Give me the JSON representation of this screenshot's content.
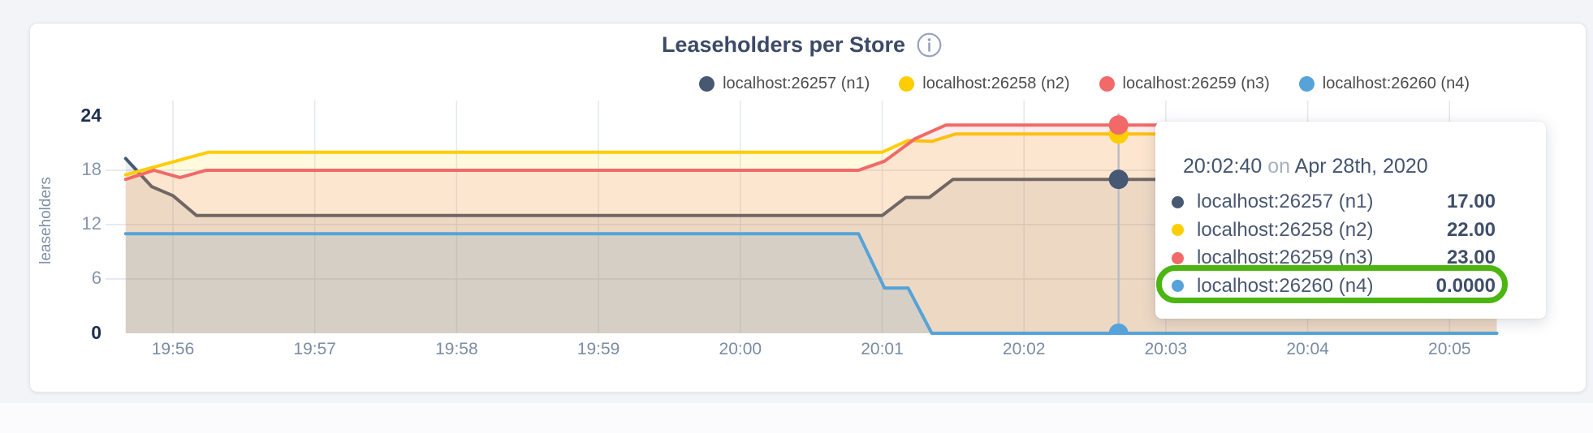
{
  "page": {
    "background_color": "#f2f4f8"
  },
  "chart": {
    "title": "Leaseholders per Store",
    "ylabel": "leaseholders",
    "legend": [
      {
        "label": "localhost:26257 (n1)",
        "color": "#475872"
      },
      {
        "label": "localhost:26258 (n2)",
        "color": "#ffcd02"
      },
      {
        "label": "localhost:26259 (n3)",
        "color": "#f16969"
      },
      {
        "label": "localhost:26260 (n4)",
        "color": "#55a3d8"
      }
    ]
  },
  "chart_data": {
    "type": "area",
    "title": "Leaseholders per Store",
    "xlabel": "",
    "ylabel": "leaseholders",
    "ylim": [
      0,
      24
    ],
    "y_ticks": [
      0,
      6,
      12,
      18,
      24
    ],
    "y_gridlines": [
      6,
      12,
      18
    ],
    "x_ticks": [
      "19:56",
      "19:57",
      "19:58",
      "19:59",
      "20:00",
      "20:01",
      "20:02",
      "20:03",
      "20:04",
      "20:05"
    ],
    "x_tick_seconds": [
      0,
      60,
      120,
      180,
      240,
      300,
      360,
      420,
      480,
      540
    ],
    "x_domain_seconds": [
      -20,
      560
    ],
    "x_unit": "seconds since 19:56:00",
    "grid": true,
    "legend_position": "top-right",
    "series": [
      {
        "name": "localhost:26257 (n1)",
        "color": "#475872",
        "points": [
          [
            -20,
            19.3
          ],
          [
            -9,
            16.2
          ],
          [
            0,
            15.2
          ],
          [
            10,
            13
          ],
          [
            300,
            13
          ],
          [
            310,
            15
          ],
          [
            320,
            15
          ],
          [
            330,
            17
          ],
          [
            560,
            17
          ]
        ]
      },
      {
        "name": "localhost:26258 (n2)",
        "color": "#ffcd02",
        "points": [
          [
            -20,
            17.5
          ],
          [
            15,
            20
          ],
          [
            300,
            20
          ],
          [
            311,
            21.3
          ],
          [
            321,
            21.2
          ],
          [
            331,
            22
          ],
          [
            560,
            22
          ]
        ]
      },
      {
        "name": "localhost:26259 (n3)",
        "color": "#f16969",
        "points": [
          [
            -20,
            17
          ],
          [
            -8,
            18
          ],
          [
            3,
            17.2
          ],
          [
            14,
            18
          ],
          [
            290,
            18
          ],
          [
            301,
            19
          ],
          [
            314,
            21.5
          ],
          [
            327,
            23
          ],
          [
            560,
            23
          ]
        ]
      },
      {
        "name": "localhost:26260 (n4)",
        "color": "#55a3d8",
        "points": [
          [
            -20,
            11
          ],
          [
            290,
            11
          ],
          [
            301,
            5
          ],
          [
            311,
            5
          ],
          [
            321,
            0
          ],
          [
            560,
            0
          ]
        ]
      }
    ],
    "hover": {
      "x_seconds": 400,
      "time": "20:02:40",
      "values": [
        17,
        22,
        23,
        0
      ]
    }
  },
  "tooltip": {
    "time": "20:02:40",
    "preposition": "on",
    "date": "Apr 28th, 2020",
    "rows": [
      {
        "label": "localhost:26257 (n1)",
        "value": "17.00",
        "color": "#475872"
      },
      {
        "label": "localhost:26258 (n2)",
        "value": "22.00",
        "color": "#ffcd02"
      },
      {
        "label": "localhost:26259 (n3)",
        "value": "23.00",
        "color": "#f16969"
      },
      {
        "label": "localhost:26260 (n4)",
        "value": "0.0000",
        "color": "#55a3d8"
      }
    ],
    "highlight": {
      "row_index": 3,
      "color": "#4cb512"
    }
  }
}
